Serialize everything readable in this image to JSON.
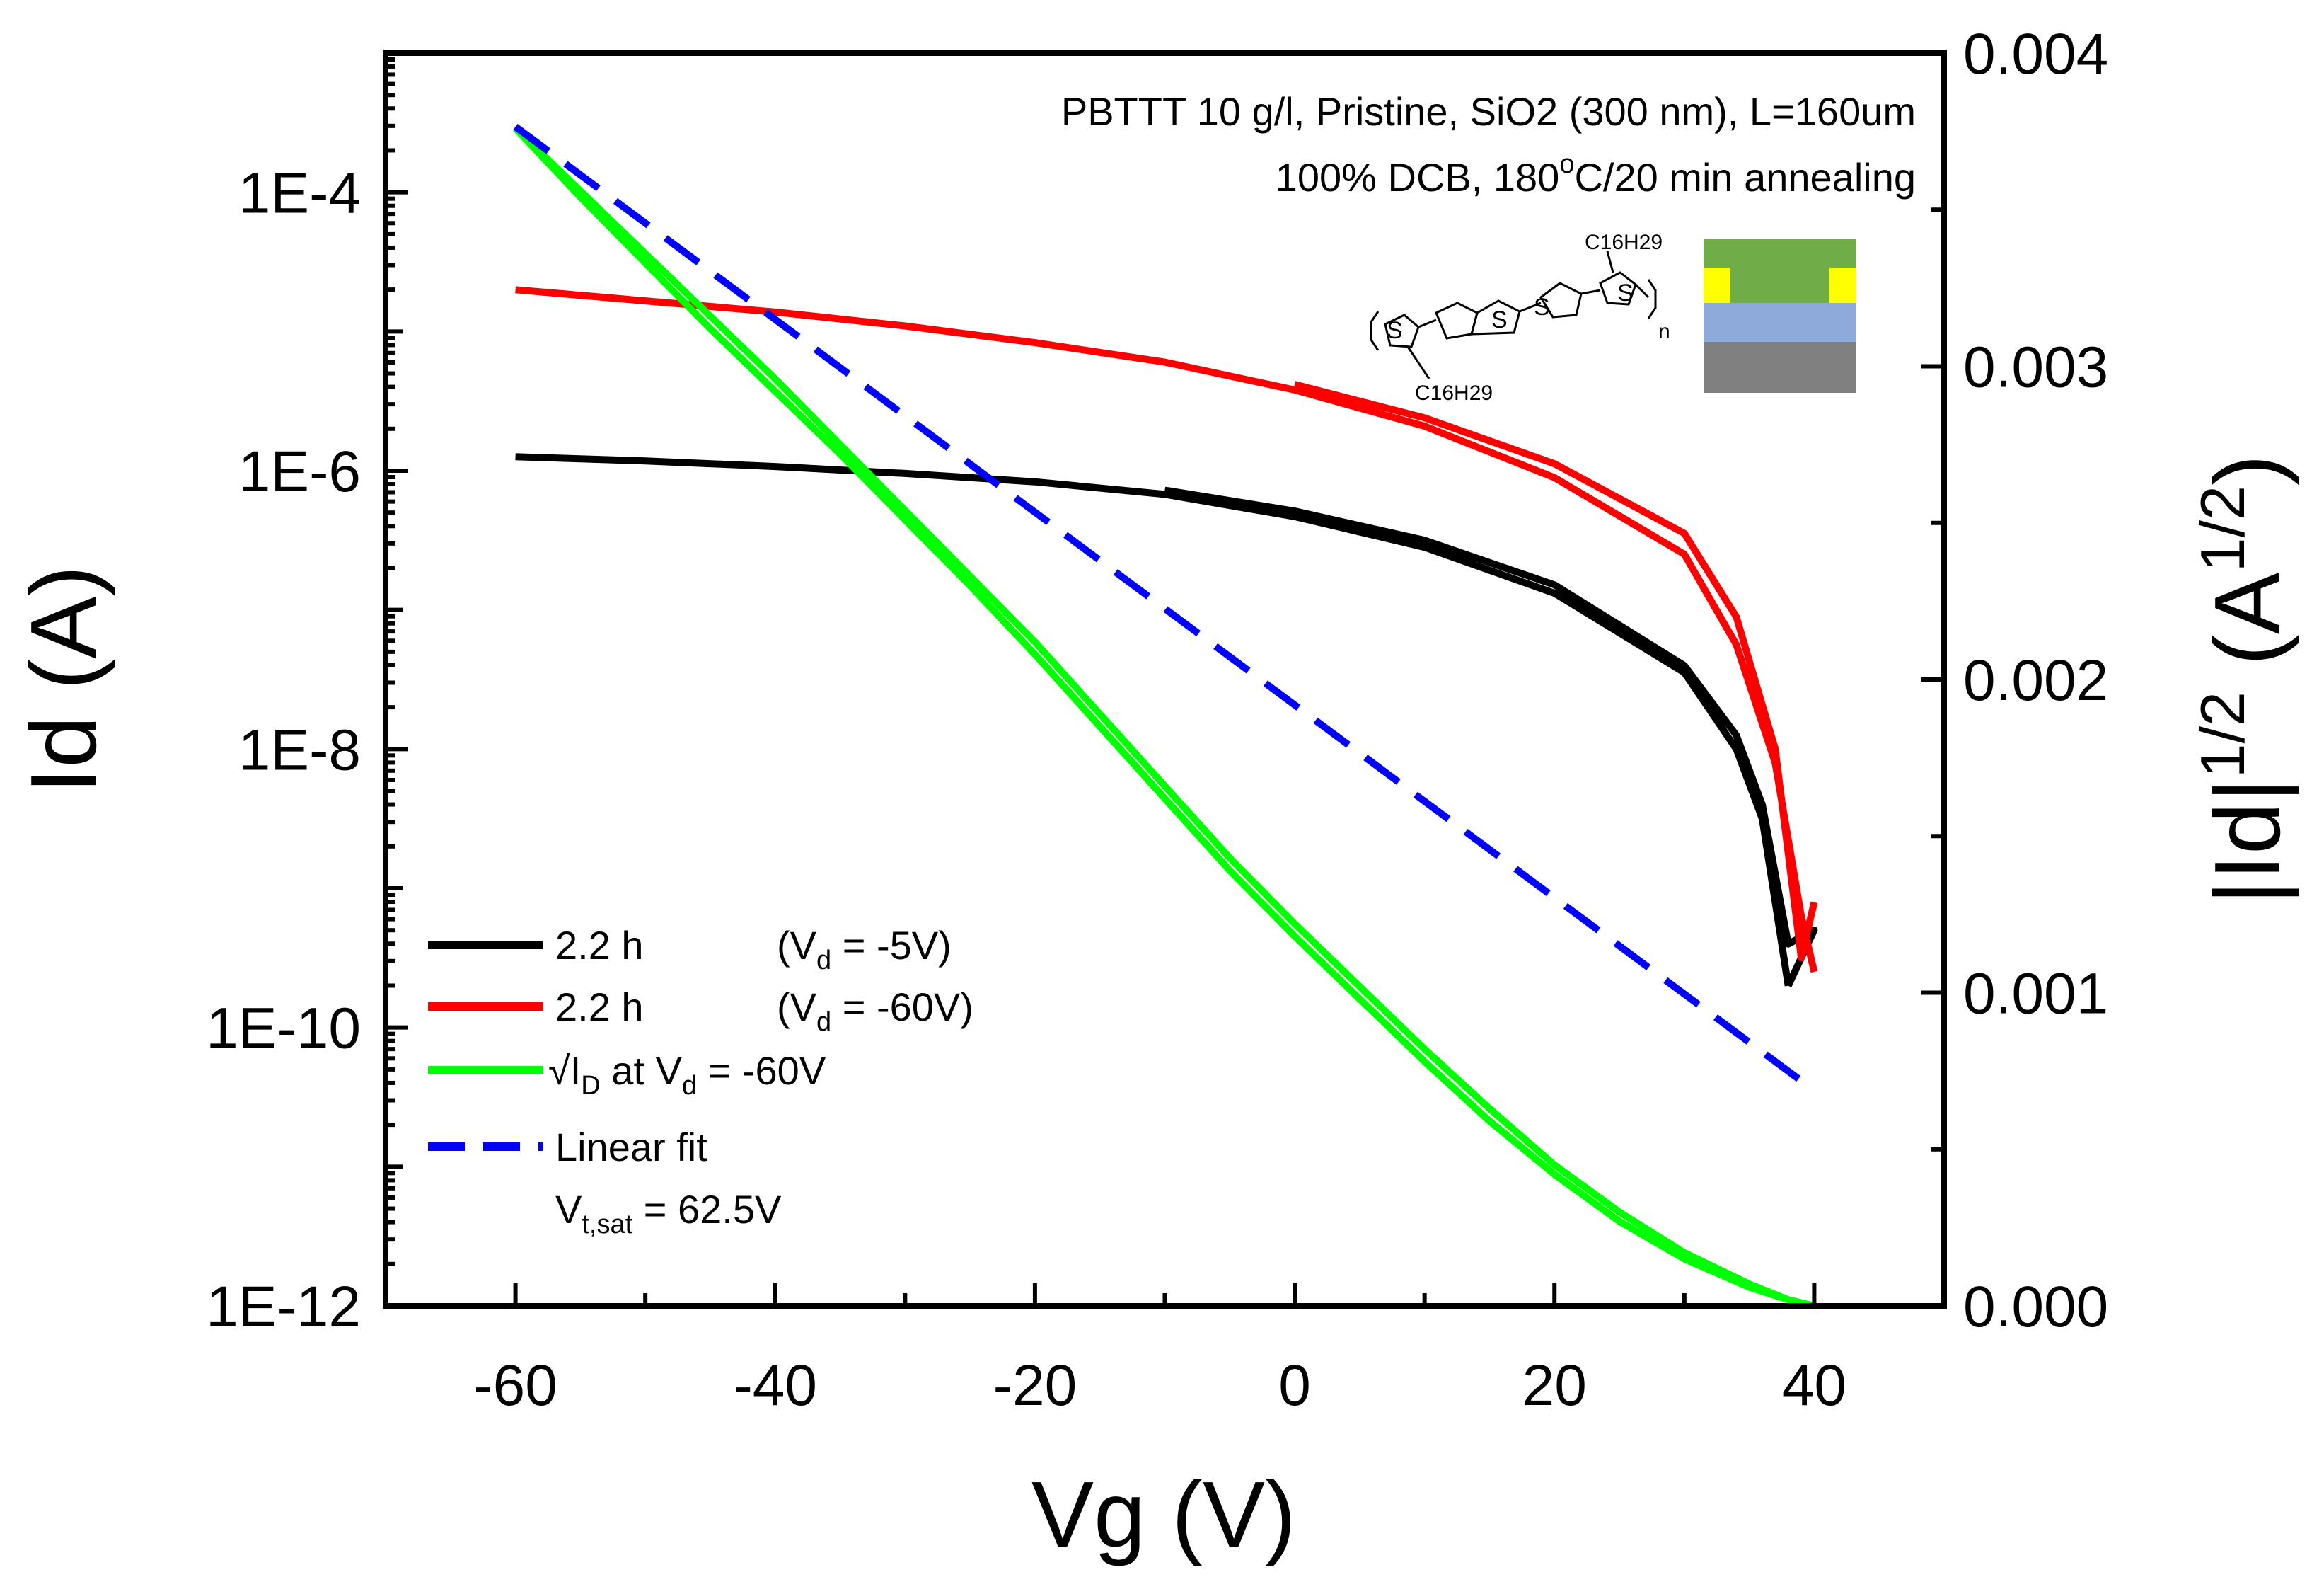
{
  "chart_data": {
    "type": "line",
    "xlabel": "Vg (V)",
    "ylabel_left": "Id (A)",
    "ylabel_right": "|Id|^{1/2} (A^{1/2})",
    "ylabel_right_parts": {
      "base": "|Id|",
      "exp1": "1/2",
      "mid": " (A",
      "exp2": "1/2",
      "end": ")"
    },
    "xlim": [
      -70,
      50
    ],
    "x_ticks": [
      -60,
      -40,
      -20,
      0,
      20,
      40
    ],
    "x_tick_labels": [
      "-60",
      "-40",
      "-20",
      "0",
      "20",
      "40"
    ],
    "ylim_left_log10": [
      -12,
      -3
    ],
    "y_left_scale": "log",
    "y_left_ticks_log10": [
      -4,
      -6,
      -8,
      -10,
      -12
    ],
    "y_left_tick_labels": [
      "1E-4",
      "1E-6",
      "1E-8",
      "1E-10",
      "1E-12"
    ],
    "ylim_right": [
      0,
      0.004
    ],
    "y_right_ticks": [
      0.004,
      0.003,
      0.002,
      0.001,
      0.0
    ],
    "y_right_tick_labels": [
      "0.004",
      "0.003",
      "0.002",
      "0.001",
      "0.000"
    ],
    "grid": false,
    "legend_position": "bottom-left",
    "annotation": {
      "line1": "PBTTT 10 g/l, Pristine, SiO2 (300 nm), L=160um",
      "line2_a": "100% DCB, 180",
      "line2_sup": "o",
      "line2_b": "C/20 min annealing"
    },
    "structure_labels": {
      "side_chain_top": "C16H29",
      "side_chain_bottom": "C16H29",
      "repeat": "n",
      "sulfur": "S"
    },
    "series": [
      {
        "name": "2.2 h",
        "legend_note": "(V_d = -5V)",
        "legend": {
          "label": "2.2 h",
          "note_a": "(V",
          "note_sub": "d",
          "note_b": " = -5V)"
        },
        "axis": "left",
        "color": "#000000",
        "dash": "solid",
        "x": [
          -60,
          -50,
          -40,
          -30,
          -20,
          -10,
          0,
          10,
          20,
          30,
          34,
          36,
          38
        ],
        "log10": [
          -5.9,
          -5.93,
          -5.97,
          -6.02,
          -6.08,
          -6.17,
          -6.33,
          -6.55,
          -6.88,
          -7.45,
          -8.0,
          -8.5,
          -9.7
        ],
        "x_return": [
          38,
          40,
          38,
          36,
          34,
          30,
          20,
          10,
          0,
          -10
        ],
        "log10_return": [
          -9.7,
          -9.3,
          -9.4,
          -8.4,
          -7.9,
          -7.4,
          -6.82,
          -6.5,
          -6.29,
          -6.14
        ]
      },
      {
        "name": "2.2 h",
        "legend_note": "(V_d = -60V)",
        "legend": {
          "label": "2.2 h",
          "note_a": "(V",
          "note_sub": "d",
          "note_b": " = -60V)"
        },
        "axis": "left",
        "color": "#ff0000",
        "dash": "solid",
        "x": [
          -60,
          -50,
          -40,
          -30,
          -20,
          -10,
          0,
          10,
          20,
          30,
          34,
          37,
          39,
          40
        ],
        "log10": [
          -4.7,
          -4.78,
          -4.86,
          -4.96,
          -5.08,
          -5.22,
          -5.42,
          -5.68,
          -6.05,
          -6.6,
          -7.25,
          -8.1,
          -9.2,
          -9.6
        ],
        "x_return": [
          40,
          39,
          37,
          34,
          30,
          20,
          10,
          0
        ],
        "log10_return": [
          -9.1,
          -9.5,
          -8.0,
          -7.05,
          -6.45,
          -5.95,
          -5.62,
          -5.38
        ]
      },
      {
        "name": "√I_D at V_d = -60V",
        "legend": {
          "label_a": "√I",
          "label_sub1": "D",
          "label_b": " at V",
          "label_sub2": "d",
          "label_c": " = -60V"
        },
        "axis": "right",
        "color": "#00ff00",
        "dash": "solid",
        "x": [
          -60,
          -55,
          -50,
          -45,
          -40,
          -35,
          -30,
          -25,
          -20,
          -15,
          -10,
          -5,
          0,
          5,
          10,
          15,
          20,
          25,
          30,
          35,
          38,
          40
        ],
        "sqrt_id": [
          0.00376,
          0.00356,
          0.00336,
          0.00316,
          0.00296,
          0.00275,
          0.00254,
          0.00233,
          0.00212,
          0.00189,
          0.00166,
          0.00143,
          0.00122,
          0.00102,
          0.00082,
          0.00063,
          0.00045,
          0.0003,
          0.00017,
          7e-05,
          2e-05,
          0.0
        ],
        "sqrt_id_return": [
          0.00376,
          0.00354,
          0.00333,
          0.00312,
          0.00292,
          0.00272,
          0.00251,
          0.0023,
          0.00208,
          0.00185,
          0.00162,
          0.00139,
          0.00118,
          0.00098,
          0.00078,
          0.00059,
          0.00042,
          0.00027,
          0.00015,
          6e-05,
          2e-05,
          0.0
        ]
      },
      {
        "name": "Linear fit",
        "legend": {
          "label": "Linear fit",
          "vt_a": "V",
          "vt_sub": "t,sat",
          "vt_b": " = 62.5V"
        },
        "axis": "right",
        "color": "#0000ff",
        "dash": "dashed",
        "x": [
          -60,
          40
        ],
        "sqrt_id": [
          0.003765,
          0.000688
        ]
      }
    ],
    "inset": {
      "layers": [
        "#70ad47",
        "#ffff00",
        "#8eaadb",
        "#808080"
      ]
    }
  }
}
